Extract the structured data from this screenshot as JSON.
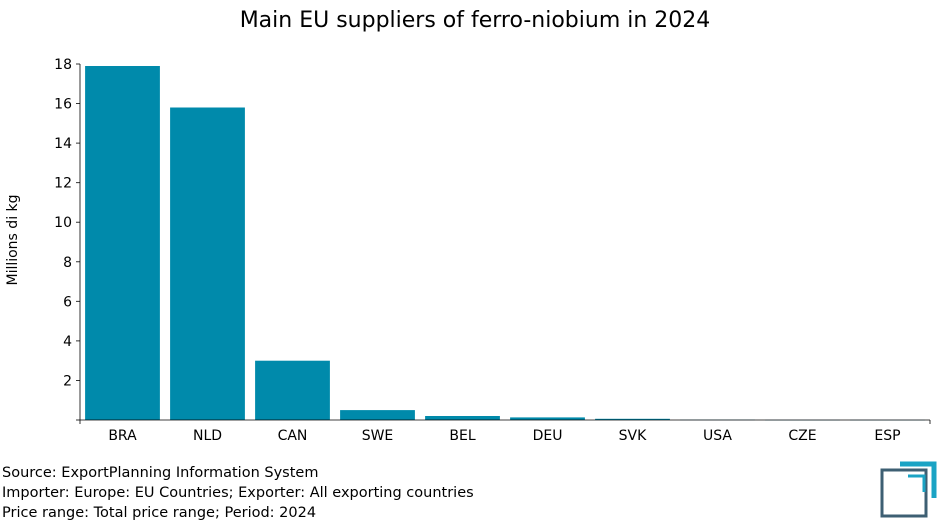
{
  "chart_data": {
    "type": "bar",
    "title": "Main EU suppliers of ferro-niobium in 2024",
    "xlabel": "",
    "ylabel": "Millions di kg",
    "categories": [
      "BRA",
      "NLD",
      "CAN",
      "SWE",
      "BEL",
      "DEU",
      "SVK",
      "USA",
      "CZE",
      "ESP"
    ],
    "values": [
      17.9,
      15.8,
      3.0,
      0.5,
      0.2,
      0.13,
      0.06,
      0.01,
      0.005,
      0.003
    ],
    "ylim": [
      0,
      18
    ],
    "yticks": [
      2,
      4,
      6,
      8,
      10,
      12,
      14,
      16,
      18
    ],
    "grid": false,
    "bar_color": "#008aab"
  },
  "footer": {
    "source": "Source: ExportPlanning Information System",
    "scope": "Importer: Europe: EU Countries; Exporter: All exporting countries",
    "range": "Price range: Total price range; Period: 2024"
  },
  "logo_icon": "exportplanning-logo-icon",
  "colors": {
    "logo_dark": "#3d5f73",
    "logo_accent": "#1aa3c4"
  }
}
